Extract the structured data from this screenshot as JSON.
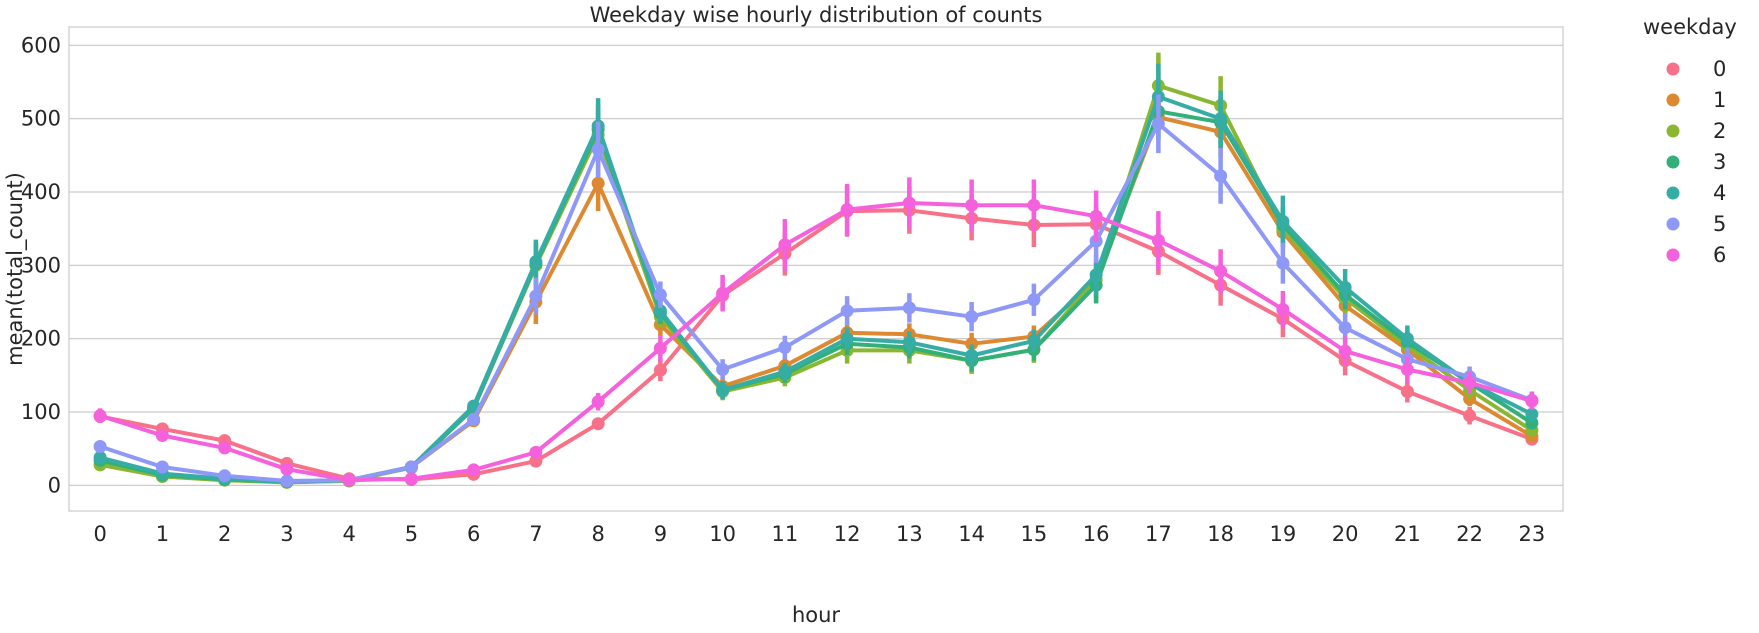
{
  "chart_data": {
    "type": "line",
    "title": "Weekday wise hourly distribution of counts",
    "xlabel": "hour",
    "ylabel": "mean(total_count)",
    "ylim": [
      -35,
      625
    ],
    "yticks": [
      0,
      100,
      200,
      300,
      400,
      500,
      600
    ],
    "categories": [
      "0",
      "1",
      "2",
      "3",
      "4",
      "5",
      "6",
      "7",
      "8",
      "9",
      "10",
      "11",
      "12",
      "13",
      "14",
      "15",
      "16",
      "17",
      "18",
      "19",
      "20",
      "21",
      "22",
      "23"
    ],
    "grid": "horizontal",
    "legend": {
      "title": "weekday",
      "placement": "top-right"
    },
    "series": [
      {
        "name": "0",
        "color": "#f77189",
        "values": [
          94,
          77,
          61,
          30,
          9,
          8,
          15,
          33,
          84,
          157,
          259,
          316,
          374,
          375,
          364,
          355,
          356,
          319,
          273,
          227,
          170,
          128,
          95,
          63
        ],
        "ci": [
          8,
          6,
          6,
          4,
          2,
          2,
          3,
          4,
          8,
          15,
          20,
          30,
          35,
          32,
          30,
          30,
          30,
          32,
          28,
          25,
          20,
          15,
          12,
          8
        ]
      },
      {
        "name": "1",
        "color": "#dc8932",
        "values": [
          28,
          13,
          8,
          5,
          6,
          25,
          88,
          250,
          412,
          219,
          135,
          163,
          208,
          206,
          193,
          203,
          280,
          502,
          482,
          345,
          245,
          185,
          118,
          67
        ],
        "ci": [
          5,
          3,
          2,
          2,
          2,
          3,
          6,
          30,
          38,
          15,
          12,
          12,
          15,
          15,
          15,
          15,
          25,
          30,
          35,
          20,
          15,
          12,
          10,
          6
        ]
      },
      {
        "name": "2",
        "color": "#8ab731",
        "values": [
          28,
          12,
          7,
          4,
          6,
          24,
          105,
          300,
          478,
          230,
          128,
          147,
          184,
          184,
          170,
          185,
          280,
          545,
          518,
          350,
          255,
          190,
          130,
          75
        ],
        "ci": [
          5,
          3,
          2,
          2,
          2,
          3,
          8,
          30,
          35,
          15,
          12,
          12,
          18,
          18,
          18,
          18,
          30,
          45,
          40,
          25,
          20,
          15,
          12,
          8
        ]
      },
      {
        "name": "3",
        "color": "#33b07a",
        "values": [
          34,
          14,
          8,
          5,
          7,
          25,
          105,
          302,
          485,
          235,
          130,
          152,
          193,
          188,
          170,
          185,
          273,
          510,
          495,
          355,
          260,
          195,
          140,
          85
        ],
        "ci": [
          5,
          3,
          2,
          2,
          2,
          3,
          8,
          30,
          35,
          15,
          12,
          12,
          15,
          15,
          15,
          15,
          25,
          40,
          35,
          25,
          20,
          15,
          12,
          8
        ]
      },
      {
        "name": "4",
        "color": "#36ada4",
        "values": [
          38,
          16,
          9,
          5,
          7,
          25,
          108,
          305,
          490,
          238,
          130,
          155,
          200,
          195,
          177,
          197,
          287,
          530,
          500,
          360,
          270,
          200,
          140,
          97
        ],
        "ci": [
          5,
          3,
          2,
          2,
          2,
          3,
          8,
          30,
          38,
          15,
          12,
          12,
          15,
          15,
          15,
          15,
          28,
          45,
          38,
          35,
          25,
          18,
          14,
          10
        ]
      },
      {
        "name": "5",
        "color": "#8e98f6",
        "values": [
          53,
          25,
          13,
          6,
          7,
          25,
          90,
          258,
          458,
          260,
          158,
          188,
          238,
          242,
          230,
          253,
          333,
          493,
          422,
          303,
          215,
          172,
          148,
          116
        ],
        "ci": [
          6,
          4,
          3,
          2,
          2,
          3,
          8,
          25,
          38,
          18,
          14,
          16,
          20,
          20,
          20,
          22,
          30,
          40,
          38,
          28,
          20,
          16,
          14,
          12
        ]
      },
      {
        "name": "6",
        "color": "#f561dd",
        "values": [
          95,
          68,
          51,
          22,
          7,
          9,
          21,
          45,
          114,
          187,
          262,
          328,
          376,
          385,
          382,
          382,
          367,
          334,
          292,
          240,
          183,
          158,
          140,
          115
        ],
        "ci": [
          10,
          6,
          6,
          4,
          2,
          2,
          4,
          6,
          12,
          18,
          25,
          35,
          35,
          35,
          35,
          35,
          35,
          40,
          30,
          25,
          20,
          18,
          15,
          12
        ]
      }
    ]
  }
}
